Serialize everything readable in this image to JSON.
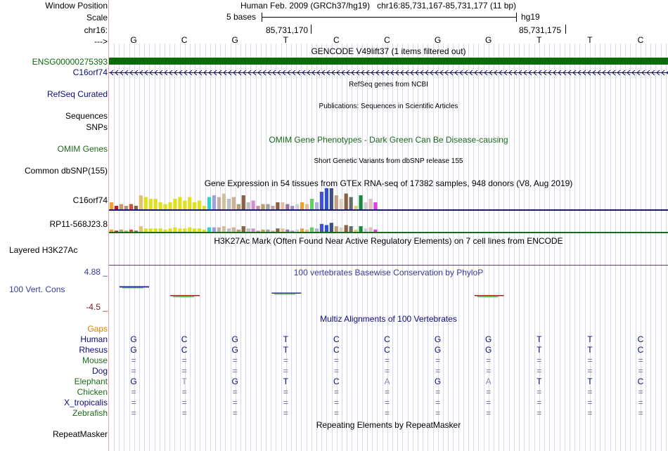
{
  "header": {
    "window_position_label": "Window Position",
    "assembly_text": "Human Feb. 2009 (GRCh37/hg19)",
    "position_text": "chr16:85,731,167-85,731,177 (11 bp)",
    "scale_label": "Scale",
    "scale_bases": "5 bases",
    "scale_db": "hg19",
    "chrom_label": "chr16:",
    "coord1": "85,731,170",
    "coord2": "85,731,175",
    "arrow_label": "--->"
  },
  "bases": [
    "G",
    "C",
    "G",
    "T",
    "C",
    "C",
    "G",
    "G",
    "T",
    "T",
    "C"
  ],
  "tracks": {
    "gencode": {
      "title": "GENCODE V49lift37 (1 items filtered out)",
      "item1": "ENSG00000275393",
      "item2": "C16orf74",
      "color1": "#0a6b0a",
      "color2": "#0c0c78"
    },
    "refseq": {
      "label": "RefSeq Curated",
      "title": "RefSeq genes from NCBI"
    },
    "publications": {
      "label": "Sequences",
      "title": "Publications: Sequences in Scientific Articles"
    },
    "snps_label": "SNPs",
    "omim": {
      "label": "OMIM Genes",
      "title": "OMIM Gene Phenotypes - Dark Green Can Be Disease-causing"
    },
    "dbsnp": {
      "label": "Common dbSNP(155)",
      "title": "Short Genetic Variants from dbSNP release 155"
    },
    "gtex": {
      "title": "Gene Expression in 54 tissues from GTEx RNA-seq of 17382 samples, 948 donors (V8, Aug 2019)",
      "gene1": "C16orf74",
      "gene2": "RP11-568J23.8"
    },
    "h3k27ac": {
      "label": "Layered H3K27Ac",
      "title": "H3K27Ac Mark (Often Found Near Active Regulatory Elements) on 7 cell lines from ENCODE"
    },
    "cons": {
      "label": "100 Vert. Cons",
      "title": "100 vertebrates Basewise Conservation by PhyloP",
      "max": "4.88 _",
      "min": "-4.5 _"
    },
    "multiz": {
      "title": "Multiz Alignments of 100 Vertebrates",
      "gaps_label": "Gaps",
      "species": [
        {
          "name": "Human",
          "seq": [
            "G",
            "C",
            "G",
            "T",
            "C",
            "C",
            "G",
            "G",
            "T",
            "T",
            "C"
          ],
          "color": "#0c0c78"
        },
        {
          "name": "Rhesus",
          "seq": [
            "G",
            "C",
            "G",
            "T",
            "C",
            "C",
            "G",
            "G",
            "T",
            "T",
            "C"
          ],
          "color": "#0c0c78"
        },
        {
          "name": "Mouse",
          "seq": [
            "=",
            "=",
            "=",
            "=",
            "=",
            "=",
            "=",
            "=",
            "=",
            "=",
            "="
          ],
          "color": "#1a6b1a"
        },
        {
          "name": "Dog",
          "seq": [
            "=",
            "=",
            "=",
            "=",
            "=",
            "=",
            "=",
            "=",
            "=",
            "=",
            "="
          ],
          "color": "#0c0c78"
        },
        {
          "name": "Elephant",
          "seq": [
            "G",
            "T",
            "G",
            "T",
            "C",
            "A",
            "G",
            "A",
            "T",
            "T",
            "C"
          ],
          "color": "#1a6b1a"
        },
        {
          "name": "Chicken",
          "seq": [
            "=",
            "=",
            "=",
            "=",
            "=",
            "=",
            "=",
            "=",
            "=",
            "=",
            "="
          ],
          "color": "#1a6b1a"
        },
        {
          "name": "X_tropicalis",
          "seq": [
            "=",
            "=",
            "=",
            "=",
            "=",
            "=",
            "=",
            "=",
            "=",
            "=",
            "="
          ],
          "color": "#0c0c78"
        },
        {
          "name": "Zebrafish",
          "seq": [
            "=",
            "=",
            "=",
            "=",
            "=",
            "=",
            "=",
            "=",
            "=",
            "=",
            "="
          ],
          "color": "#1a6b1a"
        }
      ]
    },
    "repeatmasker": {
      "label": "RepeatMasker",
      "title": "Repeating Elements by RepeatMasker"
    }
  },
  "chart_data": [
    {
      "type": "bar",
      "title": "C16orf74",
      "values": [
        4,
        2,
        3,
        2,
        3,
        2,
        8,
        7,
        6,
        6,
        4,
        3,
        4,
        6,
        7,
        5,
        7,
        4,
        5,
        2,
        7,
        8,
        7,
        9,
        6,
        7,
        3,
        8,
        4,
        5,
        2,
        3,
        3,
        2,
        4,
        4,
        3,
        2,
        3,
        4,
        3,
        6,
        4,
        10,
        12,
        12,
        8,
        6,
        9,
        7,
        2,
        8,
        4,
        6,
        4
      ],
      "colors": [
        "#f0a030",
        "#c81818",
        "#c0a060",
        "#c09060",
        "#d05030",
        "#8a6040",
        "#e0c070",
        "#e0e020",
        "#e0e020",
        "#e0e020",
        "#e0e020",
        "#e0e020",
        "#e0e020",
        "#e0e020",
        "#e0e020",
        "#e0e020",
        "#e0e020",
        "#e0e020",
        "#e0e020",
        "#e0e020",
        "#30d0d0",
        "#a0a0e0",
        "#c0b0a0",
        "#d0c0a0",
        "#c0c0c0",
        "#d0b090",
        "#b0a070",
        "#8a6040",
        "#c0c0c0",
        "#d090d0",
        "#c090a0",
        "#c0a060",
        "#a0a0a0",
        "#d0a0a0",
        "#8a6040",
        "#e0c0a0",
        "#a070a0",
        "#a090c0",
        "#d0d0d0",
        "#f0a030",
        "#e0c090",
        "#60d060",
        "#b0b0e0",
        "#4050e0",
        "#3050d0",
        "#405080",
        "#c0a080",
        "#e0d0c0",
        "#8a6040",
        "#6a6a6a",
        "#e0d070",
        "#1a8a3a",
        "#d0d0d0",
        "#e0c0c0",
        "#e040e0"
      ]
    },
    {
      "type": "bar",
      "title": "RP11-568J23.8",
      "values": [
        2,
        1,
        2,
        1,
        2,
        1,
        5,
        3,
        3,
        3,
        3,
        2,
        3,
        4,
        3,
        3,
        4,
        3,
        3,
        2,
        4,
        4,
        4,
        5,
        3,
        4,
        2,
        5,
        3,
        3,
        1,
        2,
        2,
        1,
        3,
        3,
        2,
        1,
        2,
        3,
        2,
        4,
        3,
        7,
        6,
        8,
        5,
        4,
        6,
        5,
        2,
        5,
        3,
        4,
        2
      ],
      "colors": "same-as-C16orf74"
    },
    {
      "type": "line",
      "title": "100 vertebrates Basewise Conservation by PhyloP",
      "ylim": [
        -4.5,
        4.88
      ],
      "values": [
        1.8,
        -1.2,
        0,
        0.5,
        0,
        0,
        0,
        -1.0,
        0,
        0,
        0
      ]
    }
  ]
}
